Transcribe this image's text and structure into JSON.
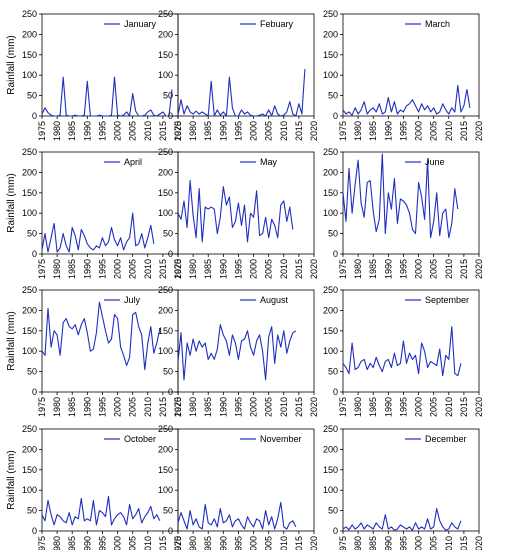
{
  "colors": {
    "series": "#1f2fbf",
    "axis": "#000000",
    "frame": "#000000",
    "background": "#ffffff"
  },
  "chart_data": [
    {
      "type": "line",
      "ylabel": "Rainfall (mm)",
      "xlim": [
        1975,
        2020
      ],
      "ylim": [
        0,
        250
      ],
      "xticks": [
        "1975",
        "1980",
        "1985",
        "1990",
        "1995",
        "2000",
        "2005",
        "2010",
        "2015",
        "2020"
      ],
      "yticks": [
        "0",
        "50",
        "100",
        "150",
        "200",
        "250"
      ],
      "grid": false,
      "legend": "top-right",
      "series": [
        {
          "name": "January",
          "x_start": 1975,
          "values": [
            5,
            20,
            8,
            2,
            0,
            0,
            2,
            95,
            2,
            0,
            0,
            2,
            0,
            0,
            2,
            85,
            0,
            0,
            0,
            2,
            0,
            0,
            0,
            2,
            95,
            2,
            0,
            2,
            10,
            0,
            55,
            12,
            0,
            0,
            2,
            10,
            15,
            2,
            0,
            5,
            10,
            0,
            0,
            65
          ]
        }
      ]
    },
    {
      "type": "line",
      "ylabel": "",
      "xlim": [
        1975,
        2020
      ],
      "ylim": [
        0,
        250
      ],
      "xticks": [
        "1975",
        "1980",
        "1985",
        "1990",
        "1995",
        "2000",
        "2005",
        "2010",
        "2015",
        "2020"
      ],
      "yticks": [
        "0",
        "50",
        "100",
        "150",
        "200",
        "250"
      ],
      "grid": false,
      "legend": "top-right",
      "series": [
        {
          "name": "Febuary",
          "x_start": 1975,
          "values": [
            2,
            40,
            5,
            25,
            10,
            5,
            12,
            5,
            10,
            5,
            0,
            85,
            0,
            15,
            2,
            10,
            0,
            95,
            20,
            0,
            0,
            15,
            5,
            10,
            2,
            0,
            0,
            2,
            5,
            0,
            15,
            0,
            25,
            5,
            0,
            2,
            10,
            35,
            5,
            0,
            30,
            5,
            115
          ]
        }
      ]
    },
    {
      "type": "line",
      "ylabel": "",
      "xlim": [
        1975,
        2020
      ],
      "ylim": [
        0,
        250
      ],
      "xticks": [
        "1975",
        "1980",
        "1985",
        "1990",
        "1995",
        "2000",
        "2005",
        "2010",
        "2015",
        "2020"
      ],
      "yticks": [
        "0",
        "50",
        "100",
        "150",
        "200",
        "250"
      ],
      "grid": false,
      "legend": "top-right",
      "series": [
        {
          "name": "March",
          "x_start": 1975,
          "values": [
            15,
            5,
            10,
            2,
            20,
            5,
            15,
            35,
            5,
            15,
            20,
            10,
            30,
            5,
            10,
            45,
            10,
            35,
            5,
            15,
            10,
            25,
            30,
            40,
            25,
            10,
            30,
            15,
            25,
            10,
            20,
            5,
            10,
            30,
            15,
            5,
            20,
            10,
            75,
            10,
            25,
            65,
            20
          ]
        }
      ]
    },
    {
      "type": "line",
      "ylabel": "Rainfall (mm)",
      "xlim": [
        1975,
        2020
      ],
      "ylim": [
        0,
        250
      ],
      "xticks": [
        "1975",
        "1980",
        "1985",
        "1990",
        "1995",
        "2000",
        "2005",
        "2010",
        "2015",
        "2020"
      ],
      "yticks": [
        "0",
        "50",
        "100",
        "150",
        "200",
        "250"
      ],
      "grid": false,
      "legend": "top-right",
      "series": [
        {
          "name": "April",
          "x_start": 1975,
          "values": [
            10,
            50,
            5,
            40,
            75,
            5,
            15,
            50,
            20,
            5,
            65,
            45,
            10,
            60,
            45,
            25,
            15,
            10,
            20,
            15,
            40,
            20,
            30,
            65,
            35,
            20,
            40,
            10,
            30,
            40,
            100,
            20,
            25,
            50,
            15,
            40,
            70,
            25
          ]
        }
      ]
    },
    {
      "type": "line",
      "ylabel": "",
      "xlim": [
        1975,
        2020
      ],
      "ylim": [
        0,
        250
      ],
      "xticks": [
        "1975",
        "1980",
        "1985",
        "1990",
        "1995",
        "2000",
        "2005",
        "2010",
        "2015",
        "2020"
      ],
      "yticks": [
        "0",
        "50",
        "100",
        "150",
        "200",
        "250"
      ],
      "grid": false,
      "legend": "top-right",
      "series": [
        {
          "name": "May",
          "x_start": 1975,
          "values": [
            100,
            85,
            130,
            65,
            180,
            95,
            40,
            160,
            30,
            115,
            110,
            115,
            110,
            50,
            90,
            165,
            120,
            140,
            65,
            80,
            125,
            70,
            120,
            30,
            100,
            90,
            155,
            45,
            50,
            90,
            40,
            85,
            70,
            40,
            120,
            130,
            80,
            115,
            60
          ]
        }
      ]
    },
    {
      "type": "line",
      "ylabel": "",
      "xlim": [
        1975,
        2020
      ],
      "ylim": [
        0,
        250
      ],
      "xticks": [
        "1975",
        "1980",
        "1985",
        "1990",
        "1995",
        "2000",
        "2005",
        "2010",
        "2015",
        "2020"
      ],
      "yticks": [
        "0",
        "50",
        "100",
        "150",
        "200",
        "250"
      ],
      "grid": false,
      "legend": "top-right",
      "series": [
        {
          "name": "June",
          "x_start": 1975,
          "values": [
            150,
            80,
            210,
            100,
            170,
            230,
            125,
            90,
            175,
            180,
            105,
            55,
            85,
            245,
            50,
            150,
            110,
            185,
            75,
            135,
            130,
            120,
            100,
            60,
            50,
            175,
            140,
            85,
            230,
            40,
            80,
            150,
            45,
            100,
            110,
            40,
            75,
            160,
            110
          ]
        }
      ]
    },
    {
      "type": "line",
      "ylabel": "Rainfall (mm)",
      "xlim": [
        1975,
        2020
      ],
      "ylim": [
        0,
        250
      ],
      "xticks": [
        "1975",
        "1980",
        "1985",
        "1990",
        "1995",
        "2000",
        "2005",
        "2010",
        "2015",
        "2020"
      ],
      "yticks": [
        "0",
        "50",
        "100",
        "150",
        "200",
        "250"
      ],
      "grid": false,
      "legend": "top-right",
      "series": [
        {
          "name": "July",
          "x_start": 1975,
          "values": [
            100,
            90,
            205,
            110,
            150,
            140,
            90,
            170,
            180,
            160,
            155,
            165,
            140,
            165,
            180,
            145,
            100,
            105,
            145,
            220,
            185,
            150,
            120,
            130,
            190,
            180,
            110,
            90,
            65,
            85,
            190,
            195,
            160,
            140,
            55,
            120,
            160,
            95,
            120,
            155
          ]
        }
      ]
    },
    {
      "type": "line",
      "ylabel": "",
      "xlim": [
        1975,
        2020
      ],
      "ylim": [
        0,
        250
      ],
      "xticks": [
        "1975",
        "1980",
        "1985",
        "1990",
        "1995",
        "2000",
        "2005",
        "2010",
        "2015",
        "2020"
      ],
      "yticks": [
        "0",
        "50",
        "100",
        "150",
        "200",
        "250"
      ],
      "grid": false,
      "legend": "top-right",
      "series": [
        {
          "name": "August",
          "x_start": 1975,
          "values": [
            75,
            145,
            30,
            120,
            90,
            130,
            100,
            125,
            110,
            120,
            80,
            95,
            80,
            105,
            165,
            140,
            125,
            90,
            140,
            120,
            80,
            125,
            130,
            150,
            110,
            90,
            125,
            140,
            100,
            30,
            135,
            160,
            70,
            140,
            110,
            150,
            95,
            125,
            145,
            150
          ]
        }
      ]
    },
    {
      "type": "line",
      "ylabel": "",
      "xlim": [
        1975,
        2020
      ],
      "ylim": [
        0,
        250
      ],
      "xticks": [
        "1975",
        "1980",
        "1985",
        "1990",
        "1995",
        "2000",
        "2005",
        "2010",
        "2015",
        "2020"
      ],
      "yticks": [
        "0",
        "50",
        "100",
        "150",
        "200",
        "250"
      ],
      "grid": false,
      "legend": "top-right",
      "series": [
        {
          "name": "September",
          "x_start": 1975,
          "values": [
            70,
            60,
            45,
            120,
            55,
            60,
            75,
            80,
            55,
            70,
            60,
            85,
            65,
            50,
            75,
            80,
            60,
            95,
            65,
            70,
            125,
            70,
            95,
            80,
            90,
            45,
            120,
            100,
            60,
            75,
            70,
            65,
            105,
            40,
            90,
            80,
            160,
            45,
            40,
            70
          ]
        }
      ]
    },
    {
      "type": "line",
      "ylabel": "Rainfall (mm)",
      "xlim": [
        1975,
        2020
      ],
      "ylim": [
        0,
        250
      ],
      "xticks": [
        "1975",
        "1980",
        "1985",
        "1990",
        "1995",
        "2000",
        "2005",
        "2010",
        "2015",
        "2020"
      ],
      "yticks": [
        "0",
        "50",
        "100",
        "150",
        "200",
        "250"
      ],
      "grid": false,
      "legend": "top-right",
      "series": [
        {
          "name": "October",
          "x_start": 1975,
          "values": [
            40,
            25,
            75,
            40,
            15,
            40,
            35,
            25,
            20,
            45,
            15,
            35,
            30,
            80,
            25,
            30,
            25,
            75,
            15,
            50,
            45,
            35,
            85,
            15,
            30,
            40,
            45,
            35,
            15,
            65,
            30,
            40,
            55,
            20,
            35,
            45,
            60,
            30,
            40,
            25
          ]
        }
      ]
    },
    {
      "type": "line",
      "ylabel": "",
      "xlim": [
        1975,
        2020
      ],
      "ylim": [
        0,
        250
      ],
      "xticks": [
        "1975",
        "1980",
        "1985",
        "1990",
        "1995",
        "2000",
        "2005",
        "2010",
        "2015",
        "2020"
      ],
      "yticks": [
        "0",
        "50",
        "100",
        "150",
        "200",
        "250"
      ],
      "grid": false,
      "legend": "top-right",
      "series": [
        {
          "name": "November",
          "x_start": 1975,
          "values": [
            20,
            45,
            25,
            5,
            50,
            15,
            30,
            10,
            5,
            65,
            20,
            15,
            30,
            10,
            55,
            20,
            25,
            40,
            10,
            25,
            30,
            15,
            5,
            35,
            20,
            10,
            30,
            25,
            5,
            50,
            15,
            35,
            5,
            30,
            70,
            10,
            5,
            20,
            25,
            10
          ]
        }
      ]
    },
    {
      "type": "line",
      "ylabel": "",
      "xlim": [
        1975,
        2020
      ],
      "ylim": [
        0,
        250
      ],
      "xticks": [
        "1975",
        "1980",
        "1985",
        "1990",
        "1995",
        "2000",
        "2005",
        "2010",
        "2015",
        "2020"
      ],
      "yticks": [
        "0",
        "50",
        "100",
        "150",
        "200",
        "250"
      ],
      "grid": false,
      "legend": "top-right",
      "series": [
        {
          "name": "December",
          "x_start": 1975,
          "values": [
            5,
            10,
            3,
            15,
            5,
            10,
            20,
            5,
            15,
            10,
            5,
            20,
            10,
            5,
            40,
            5,
            10,
            2,
            5,
            15,
            10,
            5,
            10,
            2,
            20,
            5,
            10,
            5,
            30,
            5,
            10,
            55,
            25,
            10,
            2,
            5,
            20,
            10,
            5,
            25
          ]
        }
      ]
    }
  ]
}
